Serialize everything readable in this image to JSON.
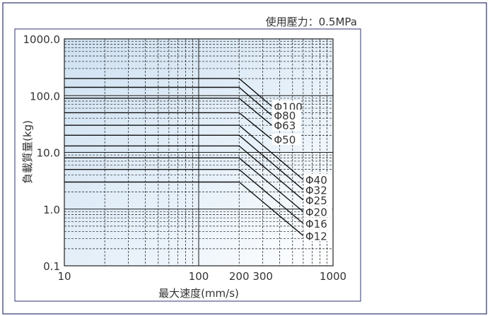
{
  "chart_data": {
    "type": "line",
    "pressure_note": "使用壓力：0.5MPa",
    "xlabel": "最大速度(mm/s)",
    "ylabel": "負載質量(kg)",
    "x_scale": "log",
    "y_scale": "log",
    "xlim": [
      10,
      1000
    ],
    "ylim": [
      0.1,
      1000
    ],
    "x_ticks": [
      {
        "value": 10,
        "label": "10"
      },
      {
        "value": 100,
        "label": "100"
      },
      {
        "value": 200,
        "label": "200"
      },
      {
        "value": 300,
        "label": "300"
      },
      {
        "value": 1000,
        "label": "1000"
      }
    ],
    "y_ticks": [
      {
        "value": 1000,
        "label": "1000.0"
      },
      {
        "value": 100,
        "label": "100.0"
      },
      {
        "value": 10,
        "label": "10.0"
      },
      {
        "value": 1,
        "label": "1.0"
      },
      {
        "value": 0.1,
        "label": "0.1"
      }
    ],
    "grid": true,
    "series": [
      {
        "name": "Φ100",
        "x": [
          10,
          200,
          350
        ],
        "y": [
          200,
          200,
          65
        ]
      },
      {
        "name": "Φ80",
        "x": [
          10,
          200,
          350
        ],
        "y": [
          140,
          140,
          45
        ]
      },
      {
        "name": "Φ63",
        "x": [
          10,
          200,
          350
        ],
        "y": [
          90,
          90,
          30
        ]
      },
      {
        "name": "Φ50",
        "x": [
          10,
          200,
          350
        ],
        "y": [
          50,
          50,
          17
        ]
      },
      {
        "name": "Φ40",
        "x": [
          10,
          200,
          600
        ],
        "y": [
          30,
          30,
          3.3
        ]
      },
      {
        "name": "Φ32",
        "x": [
          10,
          200,
          600
        ],
        "y": [
          20,
          20,
          2.2
        ]
      },
      {
        "name": "Φ25",
        "x": [
          10,
          200,
          600
        ],
        "y": [
          13,
          13,
          1.45
        ]
      },
      {
        "name": "Φ20",
        "x": [
          10,
          200,
          600
        ],
        "y": [
          8,
          8,
          0.9
        ]
      },
      {
        "name": "Φ16",
        "x": [
          10,
          200,
          600
        ],
        "y": [
          5,
          5,
          0.56
        ]
      },
      {
        "name": "Φ12",
        "x": [
          10,
          200,
          600
        ],
        "y": [
          3,
          3,
          0.34
        ]
      }
    ]
  }
}
